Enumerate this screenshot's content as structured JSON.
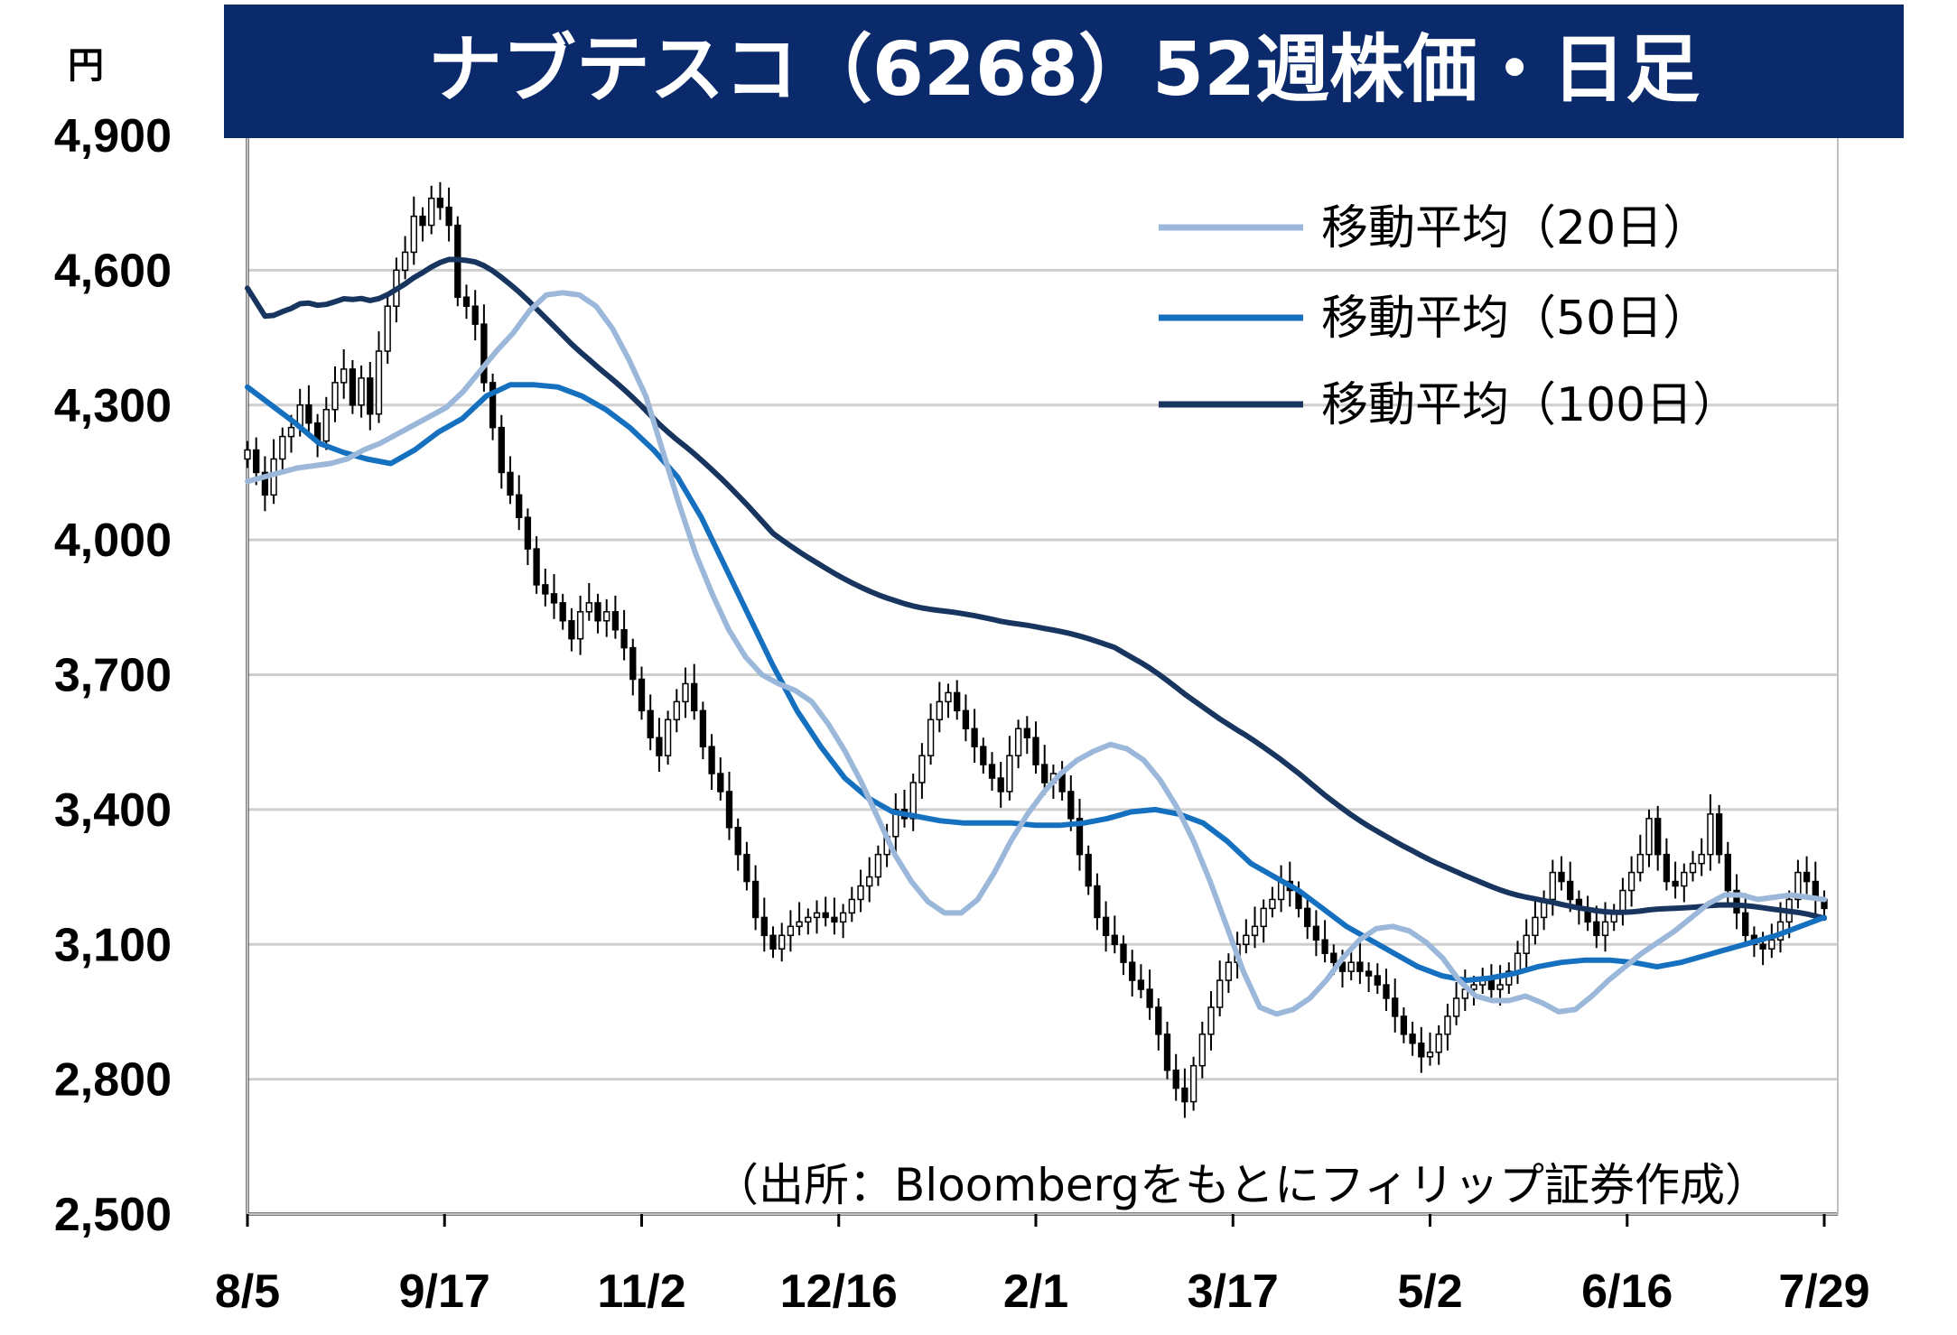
{
  "chart_data": {
    "type": "candlestick",
    "title": "ナブテスコ（6268）52週株価・日足",
    "ylabel": "円",
    "ylim": [
      2500,
      4900
    ],
    "yticks": [
      2500,
      2800,
      3100,
      3400,
      3700,
      4000,
      4300,
      4600,
      4900
    ],
    "ytick_labels": [
      "2,500",
      "2,800",
      "3,100",
      "3,400",
      "3,700",
      "4,000",
      "4,300",
      "4,600",
      "4,900"
    ],
    "xticks": [
      "8/5",
      "9/17",
      "11/2",
      "12/16",
      "2/1",
      "3/17",
      "5/2",
      "6/16",
      "7/29"
    ],
    "grid": true,
    "legend_position": "top-right",
    "source": "（出所：Bloombergをもとにフィリップ証券作成）",
    "colors": {
      "title_bg": "#0b2a6b",
      "ma20": "#9bb7d9",
      "ma50": "#1570bf",
      "ma100": "#17355e",
      "candle_up": "#ffffff",
      "candle_down": "#000000",
      "grid": "#cfcfcf"
    },
    "close": [
      4200,
      4150,
      4100,
      4180,
      4230,
      4250,
      4300,
      4260,
      4220,
      4290,
      4350,
      4380,
      4300,
      4360,
      4280,
      4420,
      4520,
      4600,
      4640,
      4720,
      4700,
      4760,
      4740,
      4700,
      4540,
      4520,
      4480,
      4350,
      4250,
      4150,
      4100,
      4050,
      3980,
      3900,
      3880,
      3860,
      3820,
      3780,
      3840,
      3860,
      3820,
      3840,
      3800,
      3760,
      3690,
      3620,
      3560,
      3520,
      3600,
      3640,
      3680,
      3620,
      3540,
      3480,
      3440,
      3360,
      3300,
      3240,
      3160,
      3120,
      3090,
      3120,
      3140,
      3150,
      3160,
      3170,
      3160,
      3150,
      3170,
      3200,
      3230,
      3250,
      3300,
      3340,
      3400,
      3380,
      3460,
      3520,
      3600,
      3640,
      3660,
      3620,
      3580,
      3540,
      3500,
      3470,
      3440,
      3520,
      3580,
      3560,
      3500,
      3460,
      3480,
      3440,
      3380,
      3300,
      3230,
      3160,
      3120,
      3100,
      3060,
      3020,
      3000,
      2960,
      2900,
      2820,
      2780,
      2750,
      2830,
      2900,
      2960,
      3020,
      3060,
      3100,
      3120,
      3140,
      3180,
      3200,
      3240,
      3220,
      3180,
      3140,
      3110,
      3080,
      3060,
      3040,
      3060,
      3040,
      3030,
      3010,
      2980,
      2940,
      2900,
      2880,
      2850,
      2860,
      2900,
      2940,
      2980,
      3000,
      3010,
      3020,
      3000,
      3010,
      3040,
      3080,
      3120,
      3160,
      3200,
      3260,
      3240,
      3200,
      3180,
      3150,
      3120,
      3150,
      3170,
      3220,
      3260,
      3300,
      3380,
      3300,
      3240,
      3230,
      3260,
      3280,
      3300,
      3390,
      3300,
      3220,
      3170,
      3120,
      3100,
      3090,
      3110,
      3150,
      3200,
      3260,
      3240,
      3200,
      3180
    ],
    "ma20": [
      4130,
      4140,
      4150,
      4160,
      4165,
      4170,
      4180,
      4200,
      4215,
      4235,
      4255,
      4275,
      4295,
      4330,
      4375,
      4420,
      4460,
      4510,
      4545,
      4550,
      4545,
      4520,
      4470,
      4400,
      4320,
      4200,
      4080,
      3970,
      3880,
      3800,
      3740,
      3700,
      3680,
      3665,
      3640,
      3590,
      3530,
      3460,
      3380,
      3300,
      3240,
      3195,
      3170,
      3170,
      3200,
      3260,
      3330,
      3390,
      3440,
      3480,
      3510,
      3530,
      3545,
      3535,
      3510,
      3465,
      3405,
      3330,
      3240,
      3140,
      3040,
      2960,
      2945,
      2955,
      2980,
      3020,
      3070,
      3110,
      3135,
      3140,
      3130,
      3105,
      3070,
      3020,
      2985,
      2975,
      2975,
      2985,
      2970,
      2950,
      2955,
      2985,
      3020,
      3050,
      3080,
      3105,
      3130,
      3160,
      3190,
      3210,
      3210,
      3200,
      3205,
      3210,
      3205,
      3200
    ],
    "ma50": [
      4340,
      4300,
      4260,
      4215,
      4195,
      4180,
      4170,
      4200,
      4240,
      4270,
      4320,
      4345,
      4345,
      4340,
      4320,
      4290,
      4250,
      4200,
      4140,
      4050,
      3940,
      3830,
      3720,
      3620,
      3540,
      3470,
      3425,
      3395,
      3385,
      3375,
      3370,
      3370,
      3370,
      3365,
      3365,
      3370,
      3380,
      3395,
      3400,
      3390,
      3370,
      3330,
      3280,
      3250,
      3220,
      3180,
      3140,
      3110,
      3080,
      3050,
      3030,
      3020,
      3025,
      3035,
      3050,
      3060,
      3065,
      3065,
      3060,
      3050,
      3060,
      3075,
      3090,
      3105,
      3120,
      3140,
      3160
    ]
  }
}
